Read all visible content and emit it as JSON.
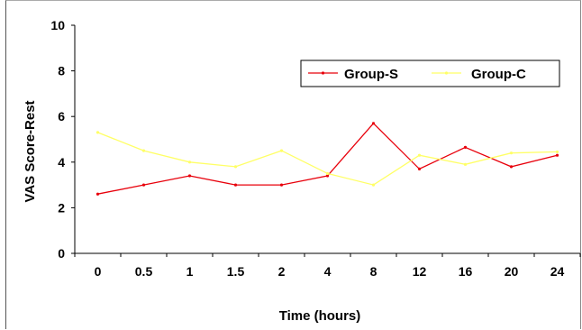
{
  "chart_data": {
    "type": "line",
    "title": "",
    "xlabel": "Time (hours)",
    "ylabel": "VAS Score-Rest",
    "categories": [
      "0",
      "0.5",
      "1",
      "1.5",
      "2",
      "4",
      "8",
      "12",
      "16",
      "20",
      "24"
    ],
    "yticks": [
      "0",
      "2",
      "4",
      "6",
      "8",
      "10"
    ],
    "ylim": [
      0,
      10
    ],
    "grid": false,
    "legend_position": "top-right",
    "series": [
      {
        "name": "Group-S",
        "color": "#e8000b",
        "values": [
          2.6,
          3.0,
          3.4,
          3.0,
          3.0,
          3.4,
          5.7,
          3.7,
          4.65,
          3.8,
          4.3
        ]
      },
      {
        "name": "Group-C",
        "color": "#ffff66",
        "values": [
          5.3,
          4.5,
          4.0,
          3.8,
          4.5,
          3.5,
          3.0,
          4.3,
          3.9,
          4.4,
          4.45
        ]
      }
    ]
  }
}
